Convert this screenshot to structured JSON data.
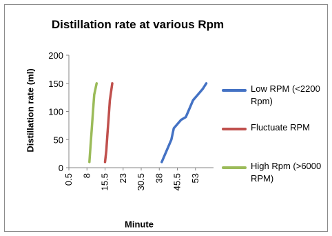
{
  "chart_data": {
    "type": "line",
    "title": "Distillation rate at various Rpm",
    "xlabel": "Minute",
    "ylabel": "Distillation rate (ml)",
    "x_tick_labels": [
      "0.5",
      "8",
      "15.5",
      "23",
      "30.5",
      "38",
      "45.5",
      "53"
    ],
    "y_tick_labels": [
      "0",
      "50",
      "100",
      "150",
      "200"
    ],
    "ylim": [
      0,
      200
    ],
    "grid": false,
    "legend_position": "right",
    "series": [
      {
        "name": "Low RPM (<2200 Rpm)",
        "color": "#4472C4",
        "x": [
          39,
          41,
          43,
          44,
          45,
          47,
          49,
          50,
          52,
          54,
          56,
          57.5
        ],
        "y": [
          10,
          30,
          50,
          70,
          75,
          85,
          90,
          100,
          120,
          130,
          140,
          150
        ]
      },
      {
        "name": "Fluctuate RPM",
        "color": "#C0504D",
        "x": [
          15.5,
          16,
          16.5,
          17,
          17.5,
          18.5
        ],
        "y": [
          10,
          30,
          60,
          90,
          120,
          150
        ]
      },
      {
        "name": "High Rpm (>6000 RPM)",
        "color": "#9BBB59",
        "x": [
          9,
          9.5,
          10,
          10.5,
          11,
          12
        ],
        "y": [
          10,
          40,
          70,
          100,
          130,
          150
        ]
      }
    ]
  }
}
